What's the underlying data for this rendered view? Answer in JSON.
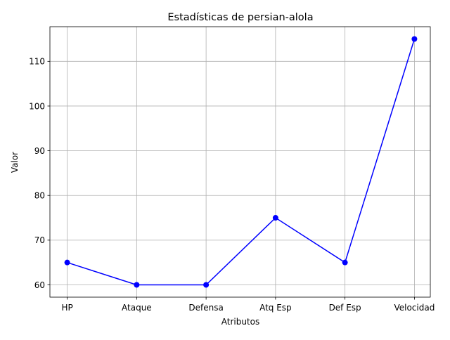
{
  "chart_data": {
    "type": "line",
    "title": "Estadísticas de persian-alola",
    "xlabel": "Atributos",
    "ylabel": "Valor",
    "categories": [
      "HP",
      "Ataque",
      "Defensa",
      "Atq Esp",
      "Def Esp",
      "Velocidad"
    ],
    "series": [
      {
        "values": [
          65,
          60,
          60,
          75,
          65,
          115
        ]
      }
    ],
    "ylim": [
      57.25,
      117.75
    ],
    "yticks": [
      60,
      70,
      80,
      90,
      100,
      110
    ],
    "grid": true,
    "line_color": "#0000ff",
    "marker": "circle"
  }
}
